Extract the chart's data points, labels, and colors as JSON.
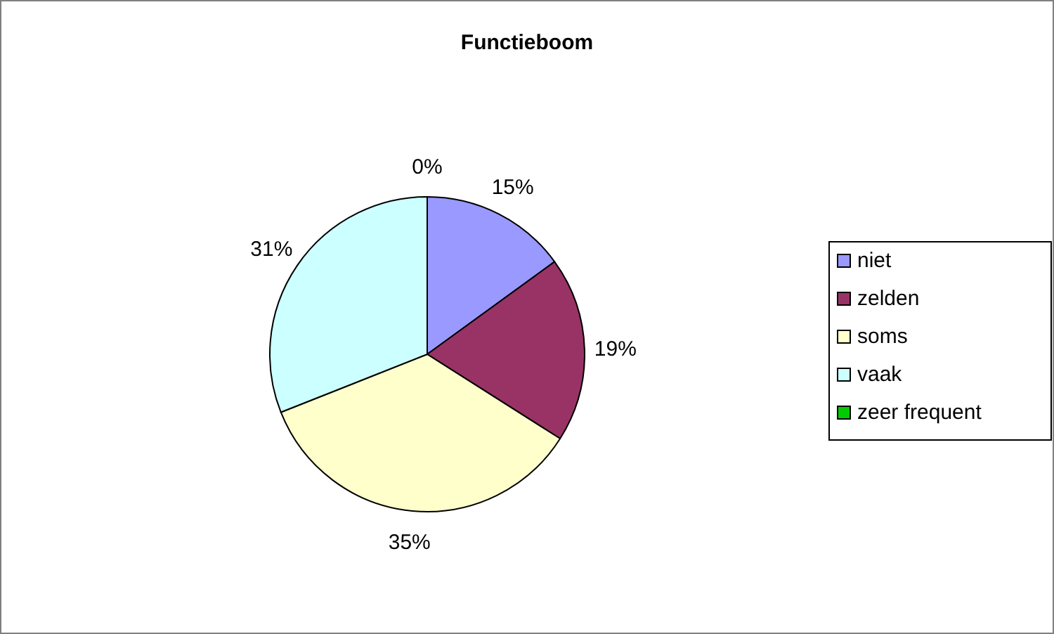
{
  "chart_data": {
    "type": "pie",
    "title": "Functieboom",
    "categories": [
      "niet",
      "zelden",
      "soms",
      "vaak",
      "zeer frequent"
    ],
    "values": [
      15,
      19,
      35,
      31,
      0
    ],
    "colors": [
      "#9999ff",
      "#993366",
      "#ffffcc",
      "#ccffff",
      "#00cc00"
    ],
    "value_labels": [
      "15%",
      "19%",
      "35%",
      "31%",
      "0%"
    ],
    "legend": "right"
  }
}
